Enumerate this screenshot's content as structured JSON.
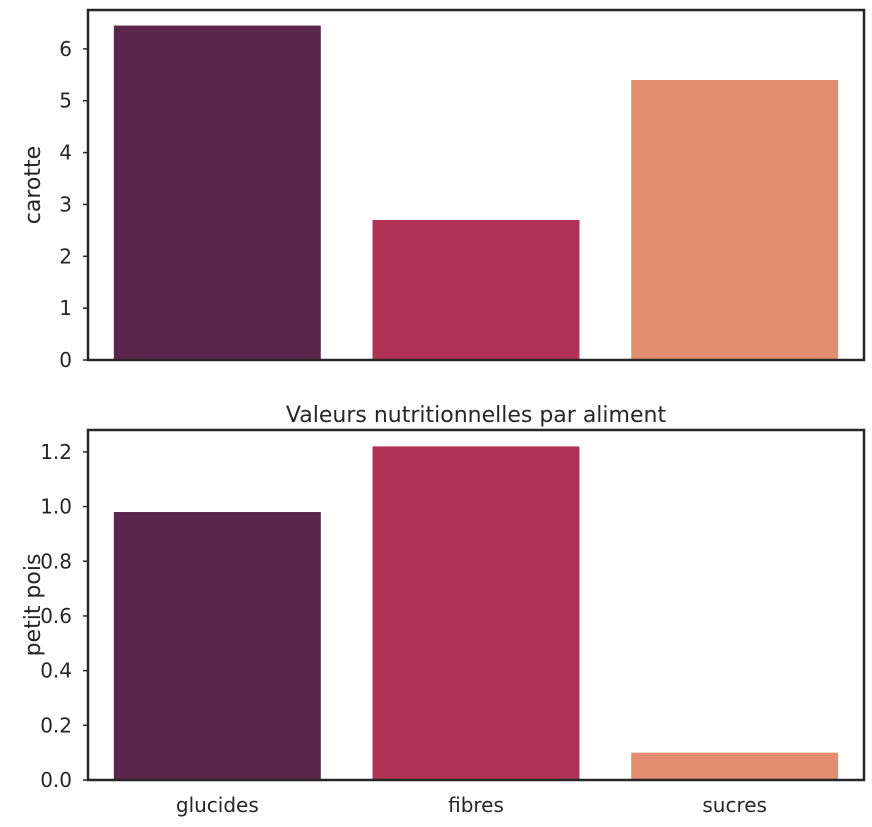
{
  "chart_data": [
    {
      "type": "bar",
      "title": "",
      "xlabel": "",
      "ylabel": "carotte",
      "categories": [
        "glucides",
        "fibres",
        "sucres"
      ],
      "values": [
        6.45,
        2.7,
        5.4
      ],
      "colors": [
        "#5a2649",
        "#b33155",
        "#e28d70"
      ],
      "ylim": [
        0,
        6.75
      ],
      "yticks": [
        0,
        1,
        2,
        3,
        4,
        5,
        6
      ],
      "ytick_labels": [
        "0",
        "1",
        "2",
        "3",
        "4",
        "5",
        "6"
      ],
      "show_xtick_labels": false,
      "grid": false
    },
    {
      "type": "bar",
      "title": "Valeurs nutritionnelles par aliment",
      "xlabel": "",
      "ylabel": "petit pois",
      "categories": [
        "glucides",
        "fibres",
        "sucres"
      ],
      "values": [
        0.98,
        1.22,
        0.1
      ],
      "colors": [
        "#5a2649",
        "#b33155",
        "#e28d70"
      ],
      "ylim": [
        0,
        1.28
      ],
      "yticks": [
        0,
        0.2,
        0.4,
        0.6,
        0.8,
        1.0,
        1.2
      ],
      "ytick_labels": [
        "0.0",
        "0.2",
        "0.4",
        "0.6",
        "0.8",
        "1.0",
        "1.2"
      ],
      "show_xtick_labels": true,
      "grid": false
    }
  ]
}
